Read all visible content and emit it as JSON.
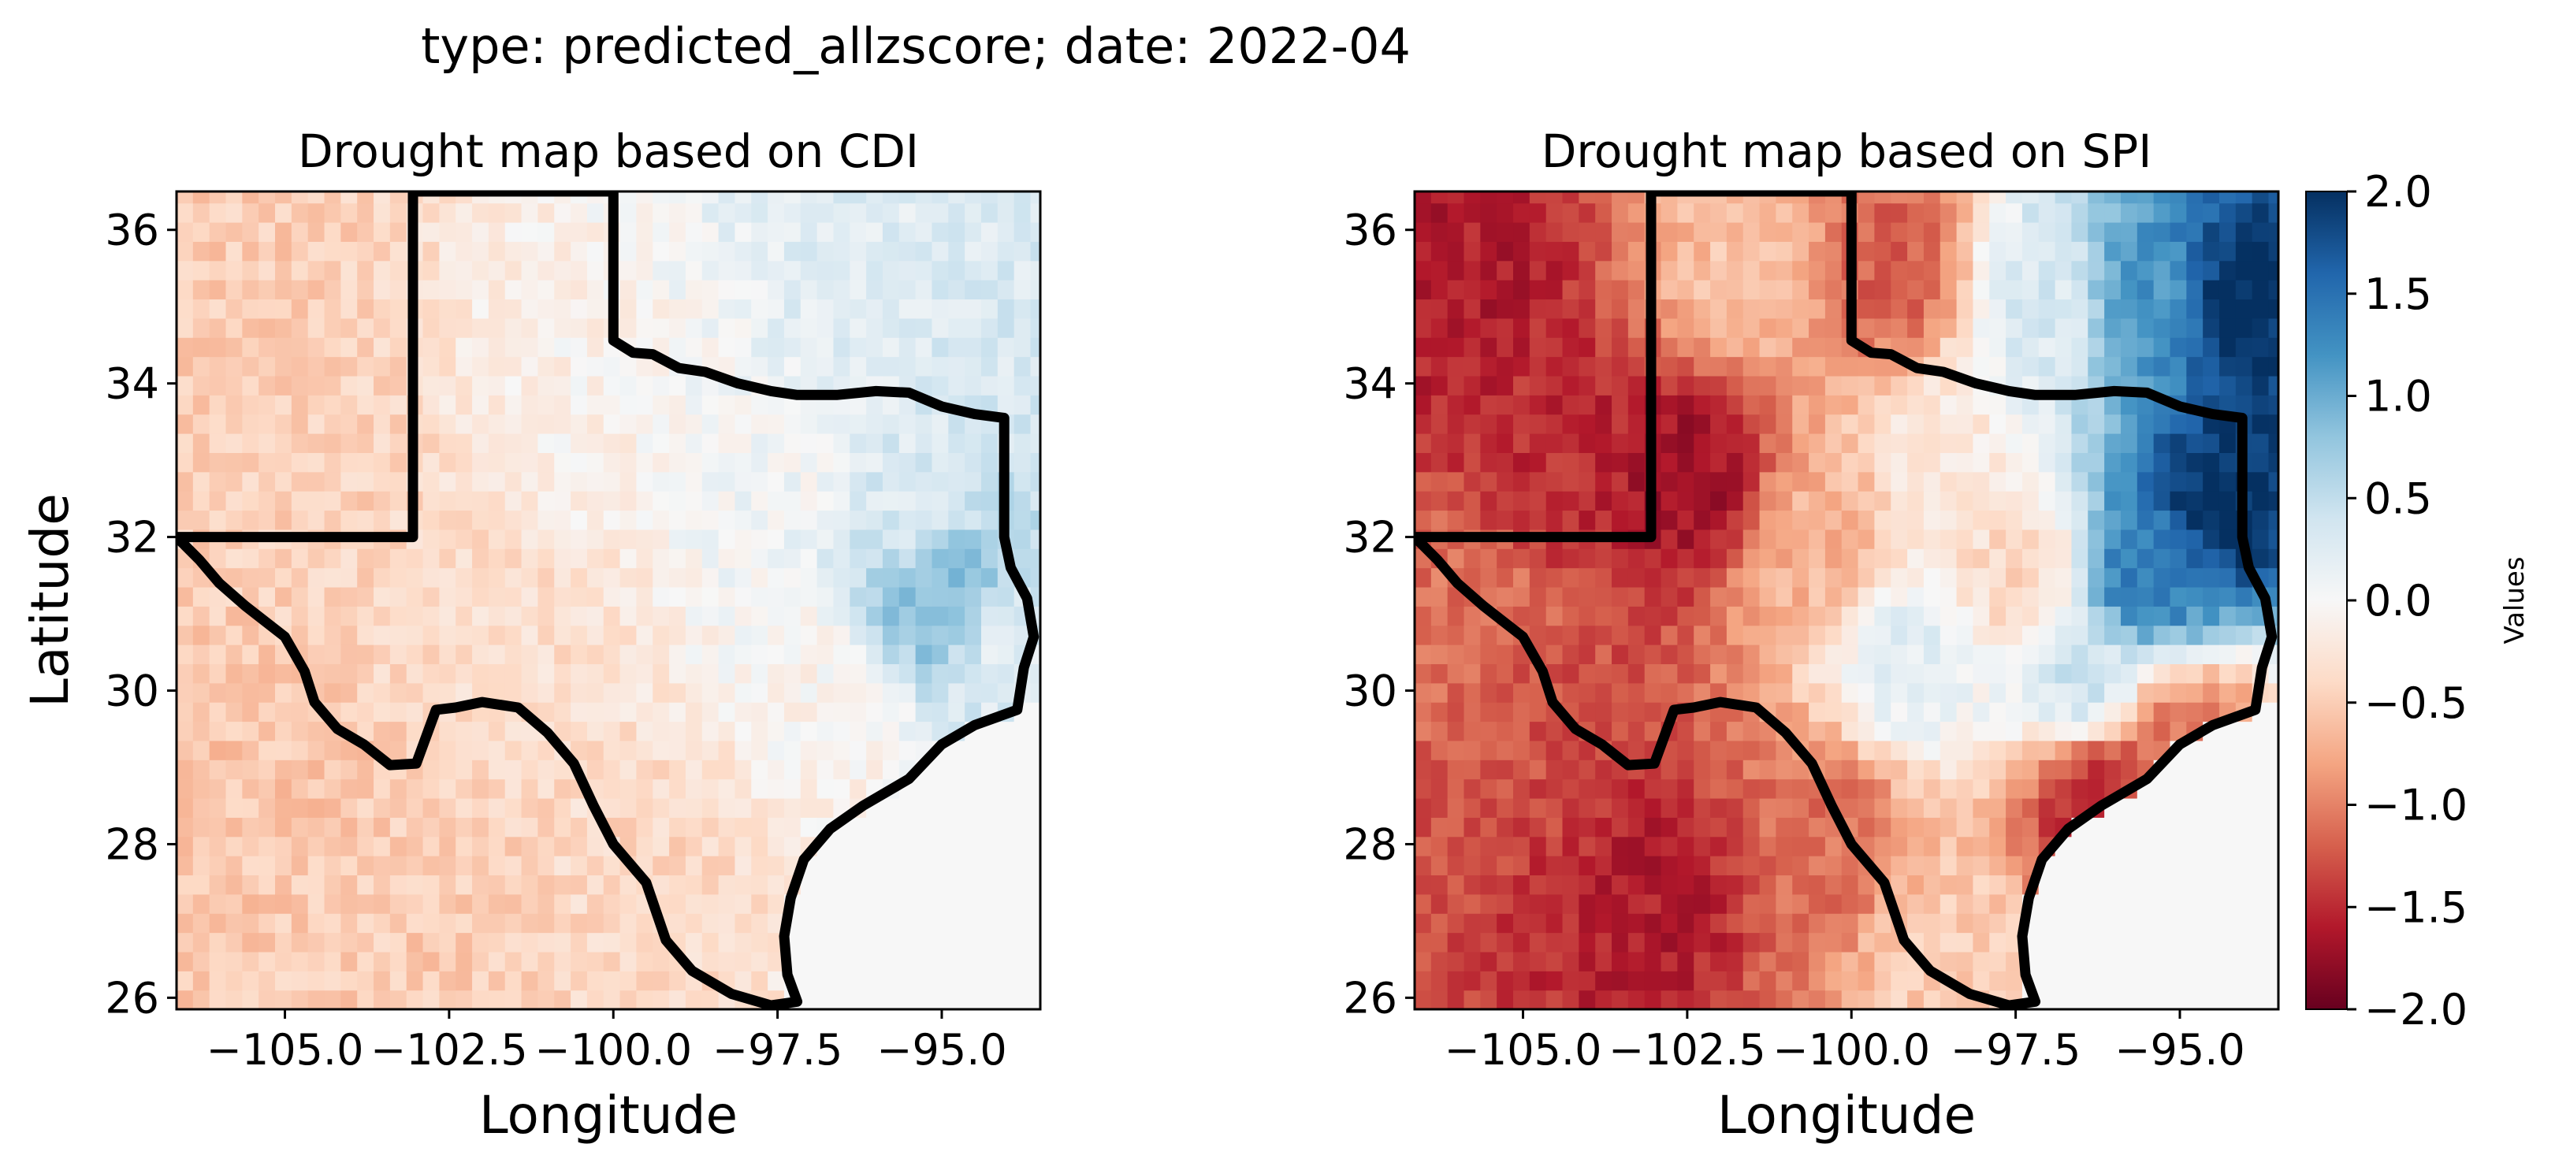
{
  "suptitle": "type: predicted_allzscore; date: 2022-04",
  "colorbar": {
    "label": "Values",
    "range": [
      -2.0,
      2.0
    ],
    "ticks": [
      "2.0",
      "1.5",
      "1.0",
      "0.5",
      "0.0",
      "−0.5",
      "−1.0",
      "−1.5",
      "−2.0"
    ],
    "colormap": "RdBu",
    "colors": [
      "#67001f",
      "#b2182b",
      "#d6604d",
      "#f4a582",
      "#fddbc7",
      "#f7f7f7",
      "#d1e5f0",
      "#92c5de",
      "#4393c3",
      "#2166ac",
      "#053061"
    ]
  },
  "chart_data": [
    {
      "type": "heatmap",
      "title": "Drought map based on CDI",
      "xlabel": "Longitude",
      "ylabel": "Latitude",
      "xlim": [
        -106.65,
        -93.5
      ],
      "ylim": [
        25.85,
        36.5
      ],
      "xticks": [
        -105.0,
        -102.5,
        -100.0,
        -97.5,
        -95.0
      ],
      "xtick_labels": [
        "−105.0",
        "−102.5",
        "−100.0",
        "−97.5",
        "−95.0"
      ],
      "yticks": [
        26,
        28,
        30,
        32,
        34,
        36
      ],
      "ytick_labels": [
        "26",
        "28",
        "30",
        "32",
        "34",
        "36"
      ],
      "grid": false,
      "value_range": [
        -2.0,
        2.0
      ],
      "ocean_value": 0.0,
      "field_regions": [
        {
          "lon": -106.0,
          "lat": 35.5,
          "value": -0.5
        },
        {
          "lon": -104.5,
          "lat": 33.0,
          "value": -0.45
        },
        {
          "lon": -105.5,
          "lat": 29.0,
          "value": -0.55
        },
        {
          "lon": -103.0,
          "lat": 27.0,
          "value": -0.5
        },
        {
          "lon": -101.5,
          "lat": 31.0,
          "value": -0.35
        },
        {
          "lon": -100.5,
          "lat": 33.5,
          "value": -0.1
        },
        {
          "lon": -99.0,
          "lat": 28.0,
          "value": -0.4
        },
        {
          "lon": -97.5,
          "lat": 33.0,
          "value": 0.05
        },
        {
          "lon": -96.0,
          "lat": 35.5,
          "value": 0.25
        },
        {
          "lon": -94.0,
          "lat": 35.0,
          "value": 0.3
        },
        {
          "lon": -95.5,
          "lat": 32.5,
          "value": 0.3
        },
        {
          "lon": -95.0,
          "lat": 31.2,
          "value": 0.9
        },
        {
          "lon": -94.0,
          "lat": 30.5,
          "value": 0.25
        },
        {
          "lon": -97.0,
          "lat": 30.0,
          "value": -0.05
        },
        {
          "lon": -96.5,
          "lat": 29.0,
          "value": -0.1
        }
      ]
    },
    {
      "type": "heatmap",
      "title": "Drought map based on SPI",
      "xlabel": "Longitude",
      "ylabel": "",
      "xlim": [
        -106.65,
        -93.5
      ],
      "ylim": [
        25.85,
        36.5
      ],
      "xticks": [
        -105.0,
        -102.5,
        -100.0,
        -97.5,
        -95.0
      ],
      "xtick_labels": [
        "−105.0",
        "−102.5",
        "−100.0",
        "−97.5",
        "−95.0"
      ],
      "yticks": [
        26,
        28,
        30,
        32,
        34,
        36
      ],
      "ytick_labels": [
        "26",
        "28",
        "30",
        "32",
        "34",
        "36"
      ],
      "grid": false,
      "value_range": [
        -2.0,
        2.0
      ],
      "ocean_value": 0.0,
      "field_regions": [
        {
          "lon": -106.0,
          "lat": 35.5,
          "value": -1.6
        },
        {
          "lon": -104.5,
          "lat": 33.0,
          "value": -1.5
        },
        {
          "lon": -105.8,
          "lat": 31.0,
          "value": -1.1
        },
        {
          "lon": -102.5,
          "lat": 32.8,
          "value": -1.7
        },
        {
          "lon": -101.5,
          "lat": 35.5,
          "value": -0.6
        },
        {
          "lon": -99.5,
          "lat": 35.5,
          "value": -1.2
        },
        {
          "lon": -100.5,
          "lat": 32.0,
          "value": -0.7
        },
        {
          "lon": -98.5,
          "lat": 33.0,
          "value": -0.2
        },
        {
          "lon": -97.5,
          "lat": 31.5,
          "value": -0.4
        },
        {
          "lon": -97.0,
          "lat": 35.0,
          "value": 0.3
        },
        {
          "lon": -95.5,
          "lat": 35.0,
          "value": 1.2
        },
        {
          "lon": -94.0,
          "lat": 35.0,
          "value": 2.0
        },
        {
          "lon": -94.3,
          "lat": 32.5,
          "value": 2.0
        },
        {
          "lon": -95.5,
          "lat": 31.5,
          "value": 1.4
        },
        {
          "lon": -96.5,
          "lat": 30.2,
          "value": 0.4
        },
        {
          "lon": -99.0,
          "lat": 30.5,
          "value": 0.2
        },
        {
          "lon": -104.5,
          "lat": 29.5,
          "value": -1.3
        },
        {
          "lon": -103.0,
          "lat": 27.5,
          "value": -1.6
        },
        {
          "lon": -100.5,
          "lat": 28.0,
          "value": -1.1
        },
        {
          "lon": -98.5,
          "lat": 26.5,
          "value": -0.5
        },
        {
          "lon": -96.2,
          "lat": 28.6,
          "value": -1.5
        },
        {
          "lon": -95.0,
          "lat": 29.3,
          "value": -1.1
        }
      ]
    }
  ]
}
